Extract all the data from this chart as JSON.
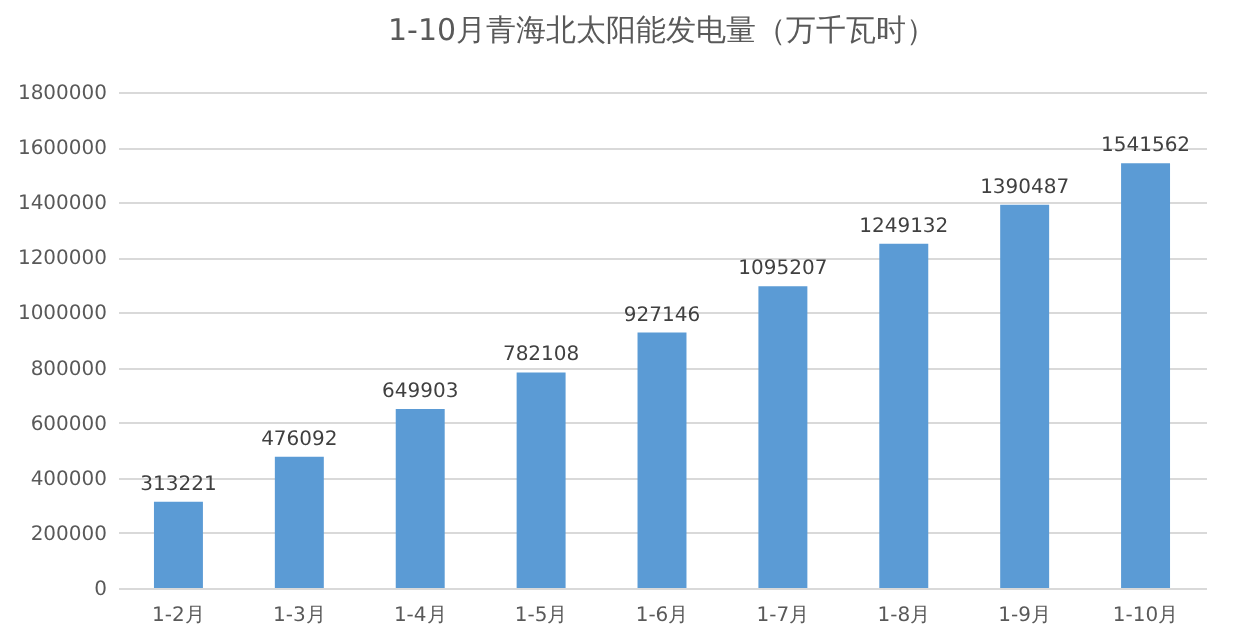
{
  "chart_data": {
    "type": "bar",
    "title": "1-10月青海北太阳能发电量（万千瓦时）",
    "categories": [
      "1-2月",
      "1-3月",
      "1-4月",
      "1-5月",
      "1-6月",
      "1-7月",
      "1-8月",
      "1-9月",
      "1-10月"
    ],
    "values": [
      313221,
      476092,
      649903,
      782108,
      927146,
      1095207,
      1249132,
      1390487,
      1541562
    ],
    "color": "#5b9bd5",
    "ylim": [
      0,
      1800000
    ],
    "yticks": [
      0,
      200000,
      400000,
      600000,
      800000,
      1000000,
      1200000,
      1400000,
      1600000,
      1800000
    ],
    "grid": "y",
    "data_labels": true
  }
}
